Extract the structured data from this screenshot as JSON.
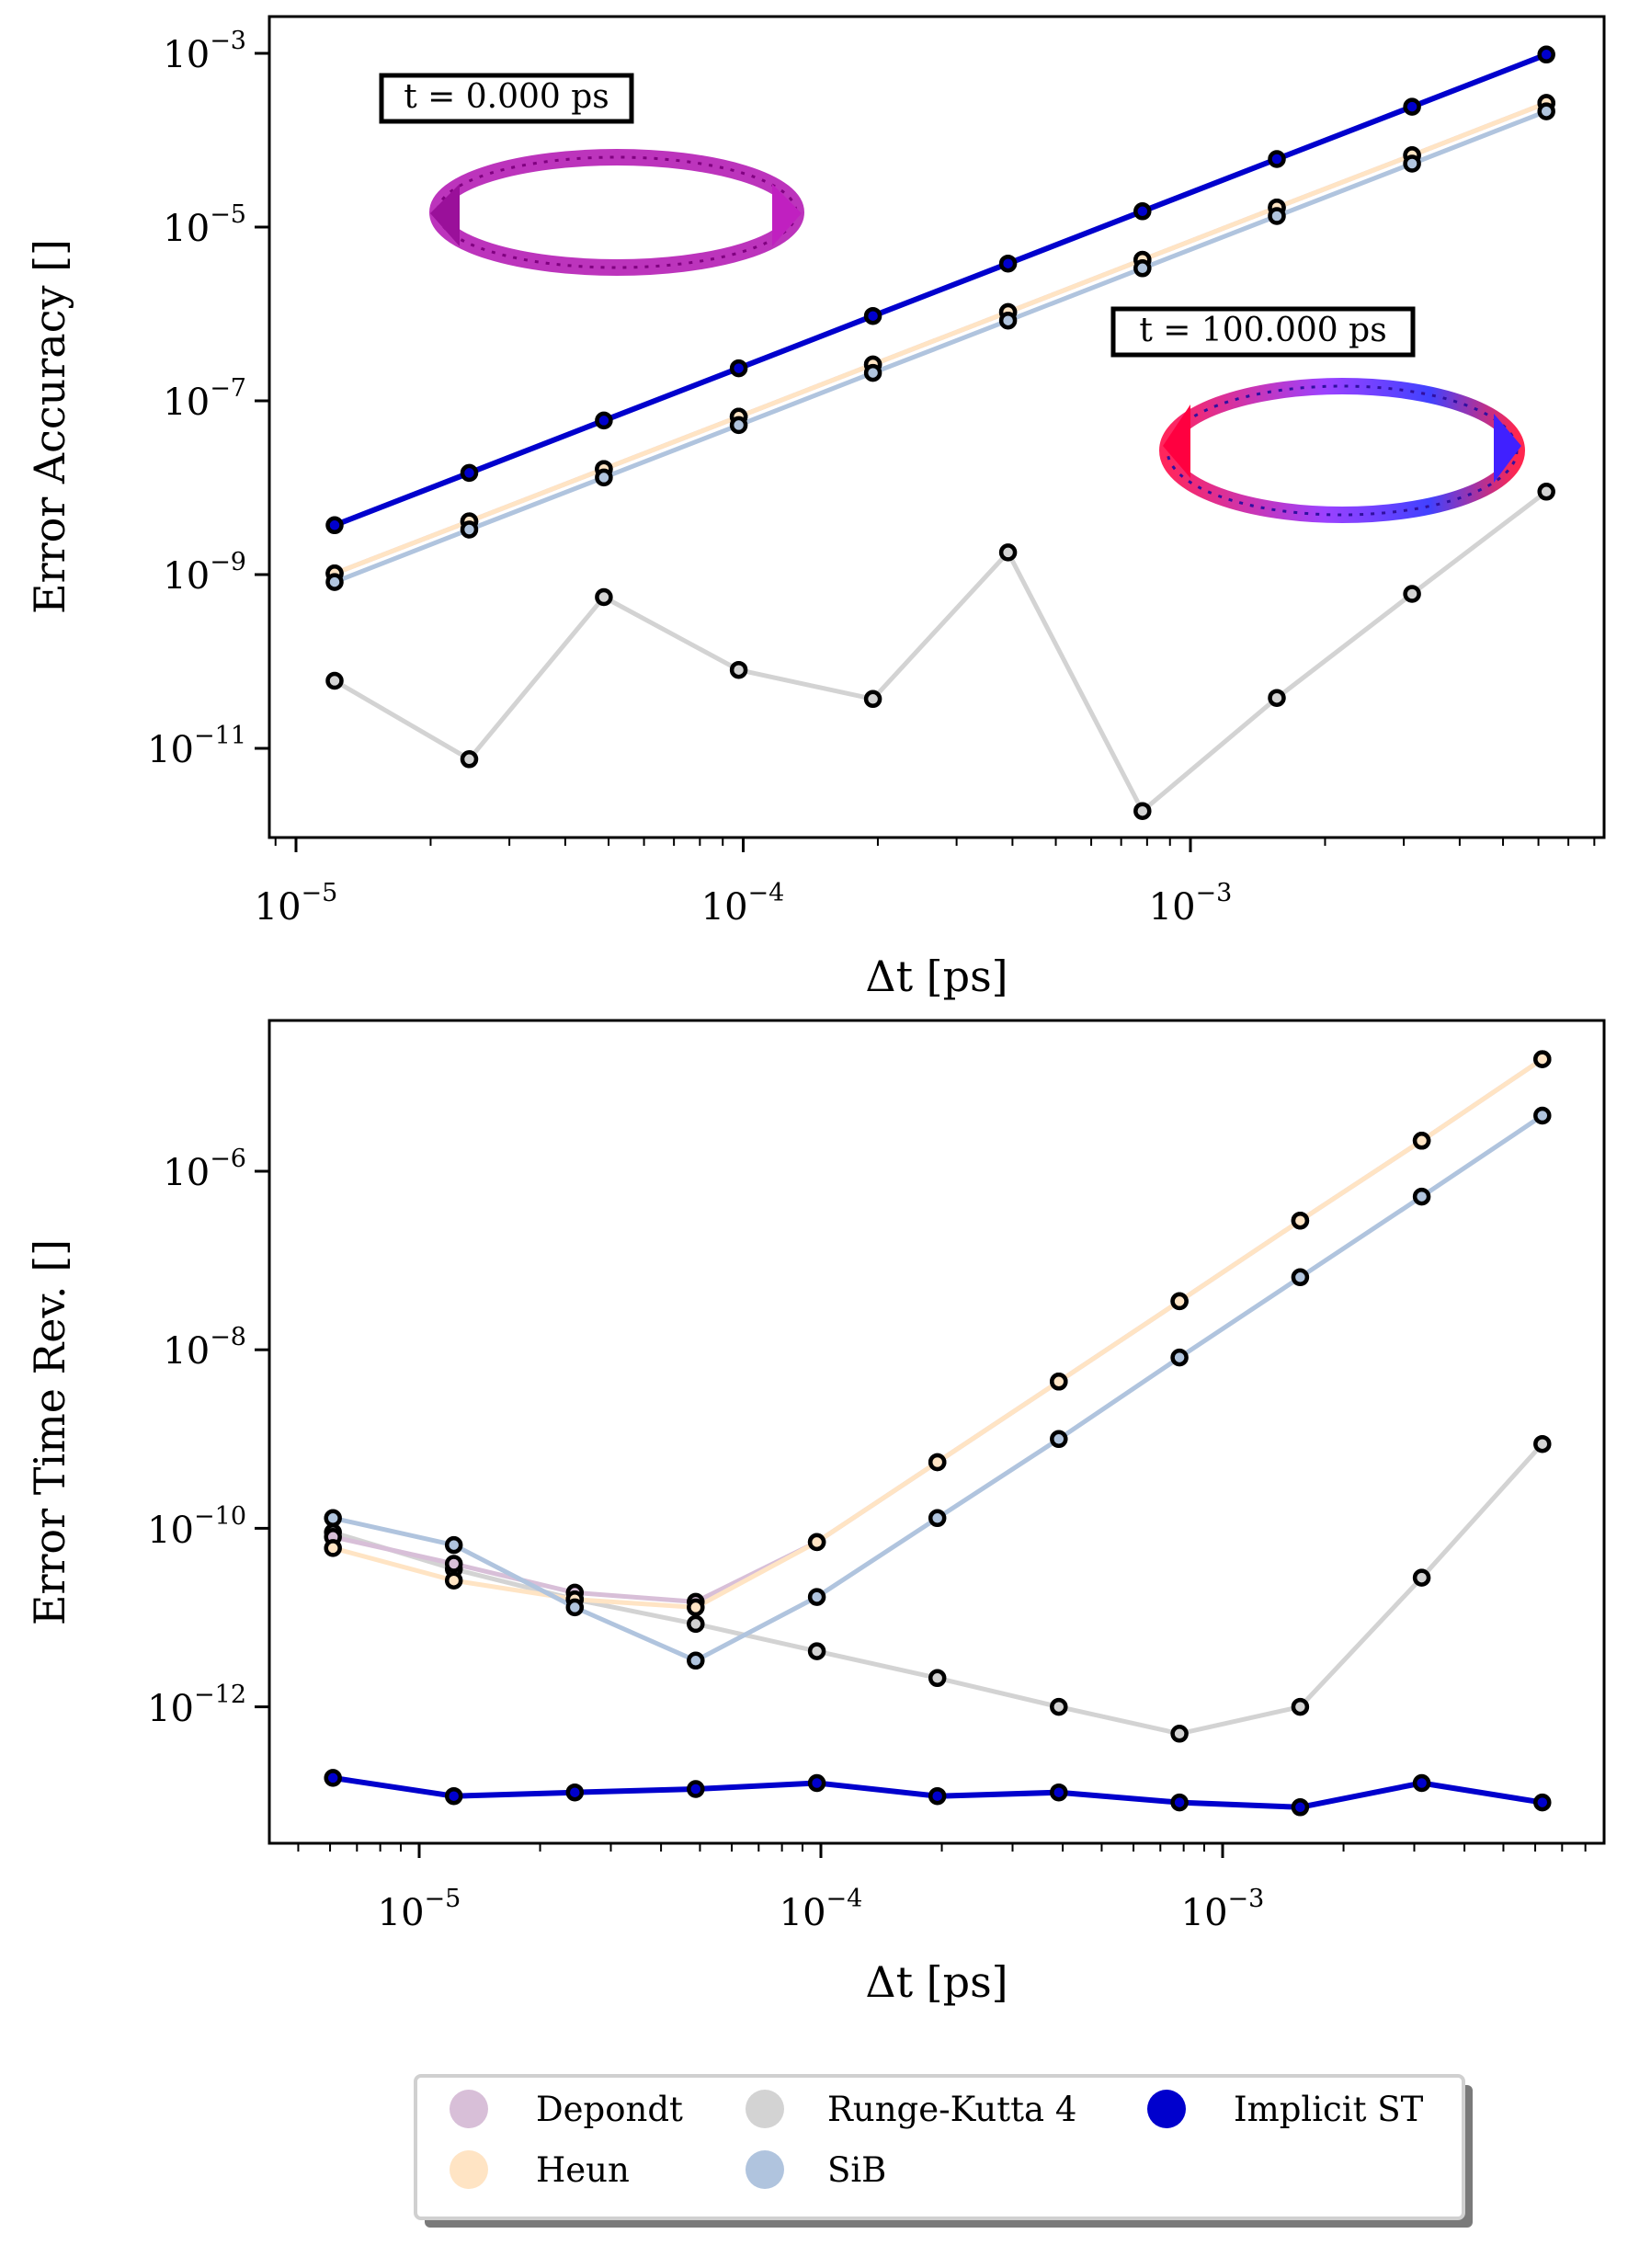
{
  "colors": {
    "Depondt": "#d8bfd8",
    "Heun": "#ffe4c4",
    "Runge-Kutta 4": "#d3d3d3",
    "SiB": "#b0c4de",
    "Implicit ST": "#0000cd",
    "marker_edge": "#000000"
  },
  "legend": {
    "items": [
      "Depondt",
      "Heun",
      "Runge-Kutta 4",
      "SiB",
      "Implicit ST"
    ]
  },
  "chart_data": [
    {
      "type": "line",
      "scale": "log-log",
      "xlabel": "Δt [ps]",
      "ylabel": "Error Accuracy []",
      "xlim": [
        8.8e-06,
        0.0082
      ],
      "ylim": [
        9e-13,
        0.0018
      ],
      "x_ticks": [
        {
          "base": "10",
          "exp": "−5",
          "value": 1e-05
        },
        {
          "base": "10",
          "exp": "−4",
          "value": 0.0001
        },
        {
          "base": "10",
          "exp": "−3",
          "value": 0.001
        }
      ],
      "y_ticks": [
        {
          "base": "10",
          "exp": "−3",
          "value": 0.001
        },
        {
          "base": "10",
          "exp": "−5",
          "value": 1e-05
        },
        {
          "base": "10",
          "exp": "−7",
          "value": 1e-07
        },
        {
          "base": "10",
          "exp": "−9",
          "value": 1e-09
        },
        {
          "base": "10",
          "exp": "−11",
          "value": 1e-11
        }
      ],
      "x": [
        1.22e-05,
        2.44e-05,
        4.88e-05,
        9.77e-05,
        0.000195,
        0.000391,
        0.000781,
        0.00156,
        0.00313,
        0.00625
      ],
      "series": [
        {
          "name": "Depondt",
          "values": [
            1.03e-09,
            4.1e-09,
            1.64e-08,
            6.56e-08,
            2.62e-07,
            1.05e-06,
            4.2e-06,
            1.68e-05,
            6.71e-05,
            0.000268
          ]
        },
        {
          "name": "Heun",
          "values": [
            1.03e-09,
            4.1e-09,
            1.64e-08,
            6.56e-08,
            2.62e-07,
            1.05e-06,
            4.2e-06,
            1.68e-05,
            6.71e-05,
            0.000268
          ]
        },
        {
          "name": "SiB",
          "values": [
            8.2e-10,
            3.3e-09,
            1.31e-08,
            5.25e-08,
            2.1e-07,
            8.4e-07,
            3.36e-06,
            1.34e-05,
            5.37e-05,
            0.000215
          ]
        },
        {
          "name": "Runge-Kutta 4",
          "values": [
            6e-11,
            7.5e-12,
            5.5e-10,
            8e-11,
            3.7e-11,
            1.8e-09,
            1.9e-12,
            3.8e-11,
            6e-10,
            9e-09
          ]
        },
        {
          "name": "Implicit ST",
          "values": [
            3.7e-09,
            1.48e-08,
            5.93e-08,
            2.37e-07,
            9.48e-07,
            3.8e-06,
            1.52e-05,
            6.07e-05,
            0.000243,
            0.00097
          ]
        }
      ],
      "annotations": [
        {
          "text": "t = 0.000 ps",
          "at": "upper-left"
        },
        {
          "text": "t = 100.000 ps",
          "at": "right"
        }
      ]
    },
    {
      "type": "line",
      "scale": "log-log",
      "xlabel": "Δt [ps]",
      "ylabel": "Error Time Rev. []",
      "xlim": [
        4.5e-06,
        0.0083
      ],
      "ylim": [
        2e-14,
        4e-05
      ],
      "x_ticks": [
        {
          "base": "10",
          "exp": "−5",
          "value": 1e-05
        },
        {
          "base": "10",
          "exp": "−4",
          "value": 0.0001
        },
        {
          "base": "10",
          "exp": "−3",
          "value": 0.001
        }
      ],
      "y_ticks": [
        {
          "base": "10",
          "exp": "−6",
          "value": 1e-06
        },
        {
          "base": "10",
          "exp": "−8",
          "value": 1e-08
        },
        {
          "base": "10",
          "exp": "−10",
          "value": 1e-10
        },
        {
          "base": "10",
          "exp": "−12",
          "value": 1e-12
        }
      ],
      "x": [
        6.1e-06,
        1.22e-05,
        2.44e-05,
        4.88e-05,
        9.77e-05,
        0.000195,
        0.000391,
        0.000781,
        0.00156,
        0.00313,
        0.00625
      ],
      "series": [
        {
          "name": "Depondt",
          "values": [
            8e-11,
            4e-11,
            1.9e-11,
            1.5e-11,
            7e-11,
            5.5e-10,
            4.4e-09,
            3.5e-08,
            2.8e-07,
            2.2e-06,
            1.8e-05
          ]
        },
        {
          "name": "Heun",
          "values": [
            6e-11,
            2.6e-11,
            1.6e-11,
            1.3e-11,
            7e-11,
            5.5e-10,
            4.4e-09,
            3.5e-08,
            2.8e-07,
            2.2e-06,
            1.8e-05
          ]
        },
        {
          "name": "SiB",
          "values": [
            1.3e-10,
            6.5e-11,
            1.3e-11,
            3.3e-12,
            1.7e-11,
            1.3e-10,
            1e-09,
            8.2e-09,
            6.5e-08,
            5.2e-07,
            4.2e-06
          ]
        },
        {
          "name": "Runge-Kutta 4",
          "values": [
            9e-11,
            3.5e-11,
            1.6e-11,
            8.5e-12,
            4.2e-12,
            2.1e-12,
            1e-12,
            5e-13,
            1e-12,
            2.8e-11,
            8.8e-10
          ]
        },
        {
          "name": "Implicit ST",
          "values": [
            1.6e-13,
            1e-13,
            1.1e-13,
            1.2e-13,
            1.4e-13,
            1e-13,
            1.1e-13,
            8.5e-14,
            7.5e-14,
            1.4e-13,
            8.5e-14
          ]
        }
      ]
    }
  ]
}
